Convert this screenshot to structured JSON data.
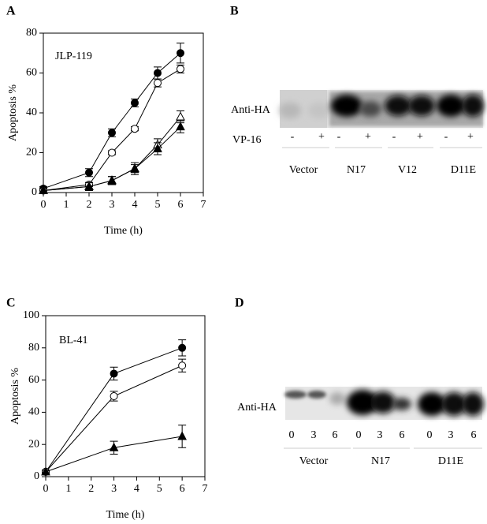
{
  "chart_data": [
    {
      "type": "line",
      "panel": "A",
      "annotation": "JLP-119",
      "x_label": "Time (h)",
      "y_label": "Apoptosis %",
      "x": [
        0,
        2,
        3,
        4,
        5,
        6
      ],
      "xlim": [
        0,
        7
      ],
      "xticks": [
        0,
        1,
        2,
        3,
        4,
        5,
        6,
        7
      ],
      "ylim": [
        0,
        80
      ],
      "yticks": [
        0,
        20,
        40,
        60,
        80
      ],
      "series": [
        {
          "color": "#000000",
          "marker": "circle",
          "filled": true,
          "values": [
            2,
            10,
            30,
            45,
            60,
            70
          ],
          "errors": [
            1,
            2,
            2,
            2,
            3,
            5
          ]
        },
        {
          "color": "#000000",
          "marker": "circle",
          "filled": false,
          "values": [
            1,
            4,
            20,
            32,
            55,
            62
          ],
          "errors": [
            1,
            1,
            1,
            1,
            2,
            2
          ]
        },
        {
          "color": "#000000",
          "marker": "triangle",
          "filled": false,
          "values": [
            1,
            3,
            6,
            12,
            24,
            38
          ],
          "errors": [
            1,
            2,
            2,
            2,
            3,
            3
          ]
        },
        {
          "color": "#000000",
          "marker": "triangle",
          "filled": true,
          "values": [
            1,
            3,
            6,
            12,
            22,
            33
          ],
          "errors": [
            1,
            2,
            2,
            3,
            3,
            3
          ]
        }
      ]
    },
    {
      "type": "line",
      "panel": "C",
      "annotation": "BL-41",
      "x_label": "Time (h)",
      "y_label": "Apoptosis %",
      "x": [
        0,
        3,
        6
      ],
      "xlim": [
        0,
        7
      ],
      "xticks": [
        0,
        1,
        2,
        3,
        4,
        5,
        6,
        7
      ],
      "ylim": [
        0,
        100
      ],
      "yticks": [
        0,
        20,
        40,
        60,
        80,
        100
      ],
      "series": [
        {
          "color": "#000000",
          "marker": "circle",
          "filled": true,
          "values": [
            3,
            64,
            80
          ],
          "errors": [
            1,
            4,
            5
          ]
        },
        {
          "color": "#000000",
          "marker": "circle",
          "filled": false,
          "values": [
            3,
            50,
            69
          ],
          "errors": [
            1,
            3,
            4
          ]
        },
        {
          "color": "#000000",
          "marker": "triangle",
          "filled": true,
          "values": [
            3,
            18,
            25
          ],
          "errors": [
            1,
            4,
            7
          ]
        }
      ]
    }
  ],
  "blots": [
    {
      "panel": "B",
      "antibody": "Anti-HA",
      "treatment": "VP-16",
      "lane_labels": [
        "-",
        "+",
        "-",
        "+",
        "-",
        "+",
        "-",
        "+"
      ],
      "groups": [
        "Vector",
        "N17",
        "V12",
        "D11E"
      ]
    },
    {
      "panel": "D",
      "antibody": "Anti-HA",
      "lane_labels": [
        "0",
        "3",
        "6",
        "0",
        "3",
        "6",
        "0",
        "3",
        "6"
      ],
      "groups": [
        "Vector",
        "N17",
        "D11E"
      ]
    }
  ]
}
